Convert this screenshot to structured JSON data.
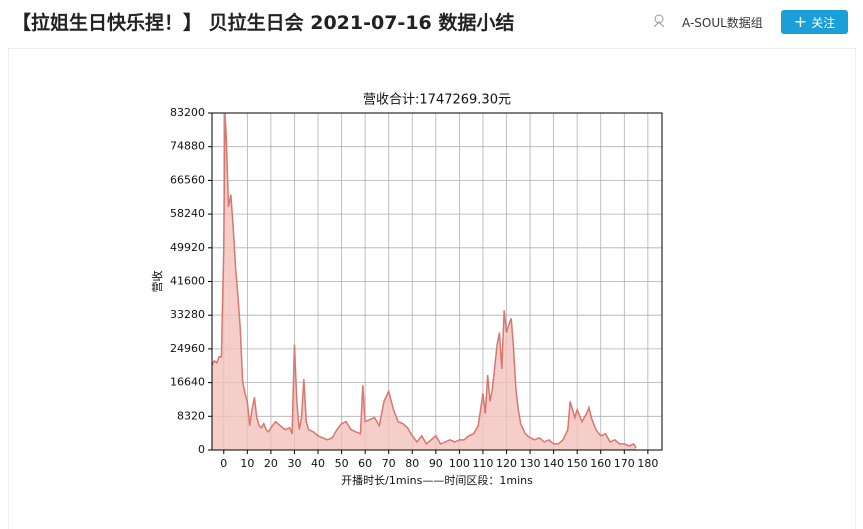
{
  "header": {
    "title": "【拉姐生日快乐捏！】 贝拉生日会 2021-07-16 数据小结",
    "author": "A-SOUL数据组",
    "button": "关注"
  },
  "chart_data": {
    "type": "area",
    "title": "营收合计:1747269.30元",
    "y_label": "营收",
    "x_label": "开播时长/1mins——时间区段：1mins",
    "color": "#d9776e",
    "fill_color": "#f2c0bb",
    "grid": true,
    "xlim": [
      -5,
      186
    ],
    "ylim": [
      0,
      83200
    ],
    "xticks": [
      0,
      10,
      20,
      30,
      40,
      50,
      60,
      70,
      80,
      90,
      100,
      110,
      120,
      130,
      140,
      150,
      160,
      170,
      180
    ],
    "yticks": [
      0,
      8320,
      16640,
      24960,
      33280,
      41600,
      49920,
      58240,
      66560,
      74880,
      83200
    ],
    "x": [
      -5,
      -4,
      -3,
      -2,
      -1,
      0,
      0.5,
      1,
      2,
      3,
      4,
      5,
      6,
      7,
      8,
      9,
      10,
      11,
      12,
      13,
      14,
      15,
      16,
      17,
      18,
      19,
      20,
      22,
      24,
      26,
      28,
      29,
      30,
      31,
      32,
      33,
      34,
      35,
      36,
      38,
      40,
      42,
      44,
      46,
      48,
      50,
      52,
      54,
      56,
      58,
      59,
      60,
      62,
      64,
      66,
      68,
      70,
      72,
      74,
      76,
      78,
      80,
      82,
      84,
      86,
      88,
      90,
      92,
      94,
      96,
      98,
      100,
      102,
      104,
      106,
      108,
      110,
      111,
      112,
      113,
      114,
      116,
      117,
      118,
      119,
      120,
      121,
      122,
      123,
      124,
      125,
      126,
      128,
      130,
      132,
      134,
      136,
      138,
      140,
      142,
      144,
      146,
      147,
      148,
      149,
      150,
      152,
      154,
      155,
      156,
      158,
      160,
      162,
      164,
      166,
      168,
      170,
      172,
      174,
      175
    ],
    "values": [
      21000,
      22000,
      21500,
      23000,
      23000,
      50000,
      83200,
      78000,
      60000,
      63000,
      55000,
      45000,
      38000,
      30000,
      17000,
      14000,
      12000,
      6000,
      10000,
      13000,
      8000,
      6000,
      5500,
      6500,
      5000,
      4500,
      5500,
      7000,
      6000,
      5000,
      5500,
      4000,
      26000,
      12000,
      5000,
      8000,
      17500,
      7000,
      5000,
      4500,
      3500,
      3000,
      2500,
      3000,
      5000,
      6500,
      7000,
      5000,
      4500,
      4000,
      16000,
      7000,
      7500,
      8000,
      6000,
      12000,
      14500,
      10000,
      7000,
      6500,
      5500,
      3500,
      2000,
      3500,
      1500,
      2500,
      3500,
      1500,
      2000,
      2500,
      2000,
      2500,
      2500,
      3500,
      4000,
      6000,
      14000,
      9000,
      18500,
      12000,
      15000,
      26000,
      29000,
      20000,
      34500,
      29000,
      31000,
      32500,
      25000,
      15000,
      10000,
      6500,
      4000,
      3000,
      2500,
      3000,
      2000,
      2500,
      1500,
      1500,
      2500,
      5000,
      12000,
      10000,
      8000,
      10000,
      7000,
      9000,
      10500,
      8000,
      5000,
      3500,
      4000,
      2000,
      2500,
      1500,
      1500,
      1000,
      1500,
      500
    ]
  }
}
